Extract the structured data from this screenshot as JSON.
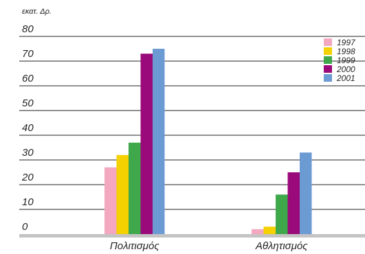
{
  "chart_data": {
    "type": "bar",
    "unit_label": "εκατ. Δρ.",
    "categories": [
      "Πολιτισμός",
      "Αθλητισμός"
    ],
    "series": [
      {
        "name": "1997",
        "color": "#f4a8c0",
        "values": [
          27,
          2
        ]
      },
      {
        "name": "1998",
        "color": "#f5d100",
        "values": [
          32,
          3
        ]
      },
      {
        "name": "1999",
        "color": "#3ea84a",
        "values": [
          37,
          16
        ]
      },
      {
        "name": "2000",
        "color": "#9b0a7a",
        "values": [
          73,
          25
        ]
      },
      {
        "name": "2001",
        "color": "#6c9bd4",
        "values": [
          75,
          33
        ]
      }
    ],
    "ylim": [
      0,
      80
    ],
    "yticks": [
      0,
      10,
      20,
      30,
      40,
      50,
      60,
      70,
      80
    ],
    "grid": true,
    "legend": "top-right"
  }
}
